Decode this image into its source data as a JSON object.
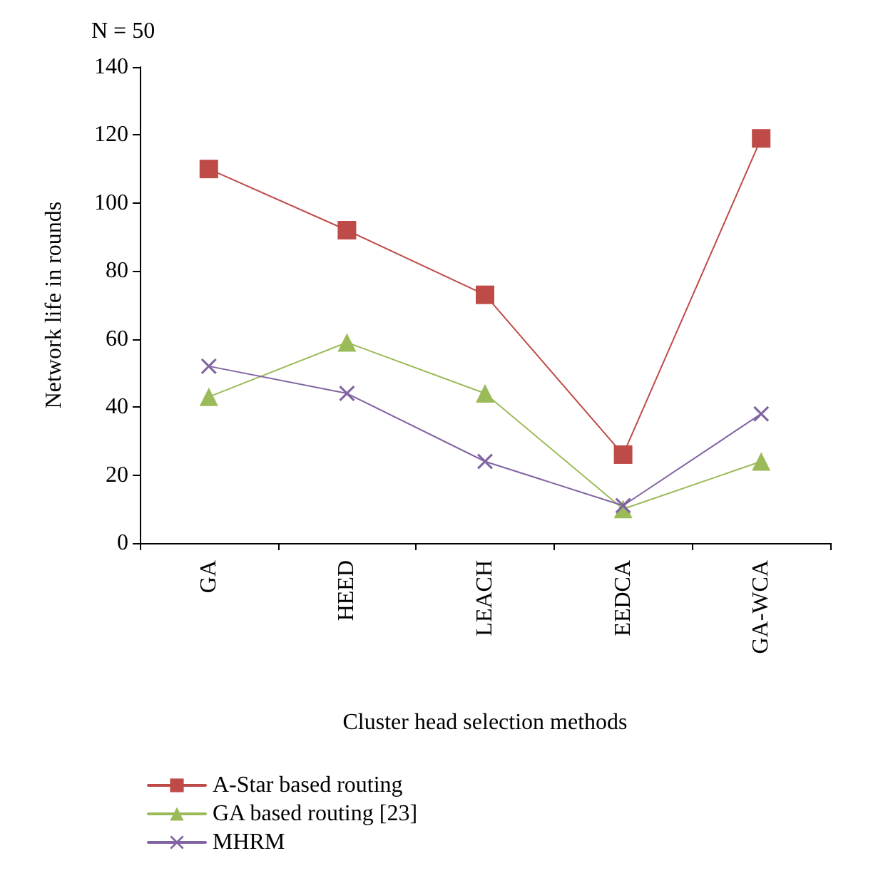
{
  "chart_data": {
    "type": "line",
    "annotations": [
      "N = 50"
    ],
    "xlabel": "Cluster head selection methods",
    "ylabel": "Network life in rounds",
    "categories": [
      "GA",
      "HEED",
      "LEACH",
      "EEDCA",
      "GA-WCA"
    ],
    "ylim": [
      0,
      140
    ],
    "yticks": [
      0,
      20,
      40,
      60,
      80,
      100,
      120,
      140
    ],
    "grid": false,
    "legend": "bottom",
    "line_style": "solid",
    "series": [
      {
        "name": "A-Star based routing",
        "color": "#be4b48",
        "marker": "square",
        "values": [
          110,
          92,
          73,
          26,
          119
        ]
      },
      {
        "name": "GA based routing [23]",
        "color": "#9bbb59",
        "marker": "triangle",
        "values": [
          43,
          59,
          44,
          10,
          24
        ]
      },
      {
        "name": "MHRM",
        "color": "#8064a2",
        "marker": "cross",
        "values": [
          52,
          44,
          24,
          11,
          38
        ]
      }
    ]
  }
}
